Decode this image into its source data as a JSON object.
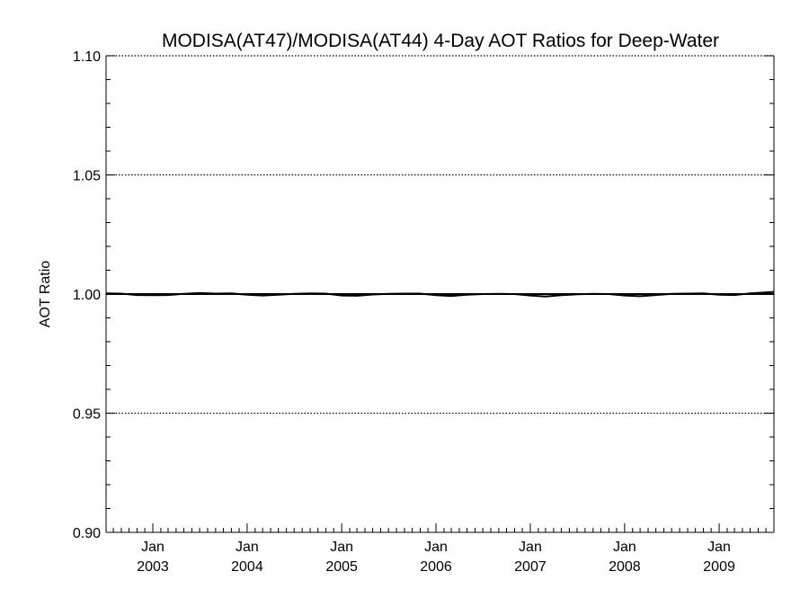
{
  "chart_data": {
    "type": "line",
    "title": "MODISA(AT47)/MODISA(AT44) 4-Day AOT Ratios for Deep-Water",
    "xlabel": "",
    "ylabel": "AOT Ratio",
    "xlim": [
      "2002-07-04",
      "2009-08-01"
    ],
    "ylim": [
      0.9,
      1.1
    ],
    "y_ticks": [
      "0.90",
      "0.95",
      "1.00",
      "1.05",
      "1.10"
    ],
    "y_gridlines": [
      0.95,
      1.05,
      1.1
    ],
    "reference_line": 1.0,
    "x_ticks": [
      {
        "date": "2003-01-01",
        "month": "Jan",
        "year": "2003"
      },
      {
        "date": "2004-01-01",
        "month": "Jan",
        "year": "2004"
      },
      {
        "date": "2005-01-01",
        "month": "Jan",
        "year": "2005"
      },
      {
        "date": "2006-01-01",
        "month": "Jan",
        "year": "2006"
      },
      {
        "date": "2007-01-01",
        "month": "Jan",
        "year": "2007"
      },
      {
        "date": "2008-01-01",
        "month": "Jan",
        "year": "2008"
      },
      {
        "date": "2009-01-01",
        "month": "Jan",
        "year": "2009"
      }
    ],
    "series": [
      {
        "x": [
          "2002-07-04",
          "2002-09-01",
          "2002-11-01",
          "2003-01-01",
          "2003-03-01",
          "2003-05-01",
          "2003-07-01",
          "2003-09-01",
          "2003-11-01",
          "2004-01-01",
          "2004-03-01",
          "2004-05-01",
          "2004-07-01",
          "2004-09-01",
          "2004-11-01",
          "2005-01-01",
          "2005-03-01",
          "2005-05-01",
          "2005-07-01",
          "2005-09-01",
          "2005-11-01",
          "2006-01-01",
          "2006-03-01",
          "2006-05-01",
          "2006-07-01",
          "2006-09-01",
          "2006-11-01",
          "2007-01-01",
          "2007-03-01",
          "2007-05-01",
          "2007-07-01",
          "2007-09-01",
          "2007-11-01",
          "2008-01-01",
          "2008-03-01",
          "2008-05-01",
          "2008-07-01",
          "2008-09-01",
          "2008-11-01",
          "2009-01-01",
          "2009-03-01",
          "2009-05-01",
          "2009-08-01"
        ],
        "y": [
          1.0003,
          1.0002,
          0.9996,
          0.9995,
          0.9996,
          1.0001,
          1.0004,
          1.0002,
          1.0003,
          0.9997,
          0.9994,
          0.9997,
          1.0001,
          1.0003,
          1.0002,
          0.9994,
          0.9993,
          0.9998,
          1.0001,
          1.0002,
          1.0002,
          0.9995,
          0.9992,
          0.9997,
          1.0,
          1.0001,
          1.0,
          0.9994,
          0.999,
          0.9995,
          0.9999,
          1.0001,
          1.0,
          0.9994,
          0.9991,
          0.9996,
          1.0001,
          1.0002,
          1.0003,
          0.9997,
          0.9996,
          1.0003,
          1.0009
        ]
      }
    ]
  }
}
